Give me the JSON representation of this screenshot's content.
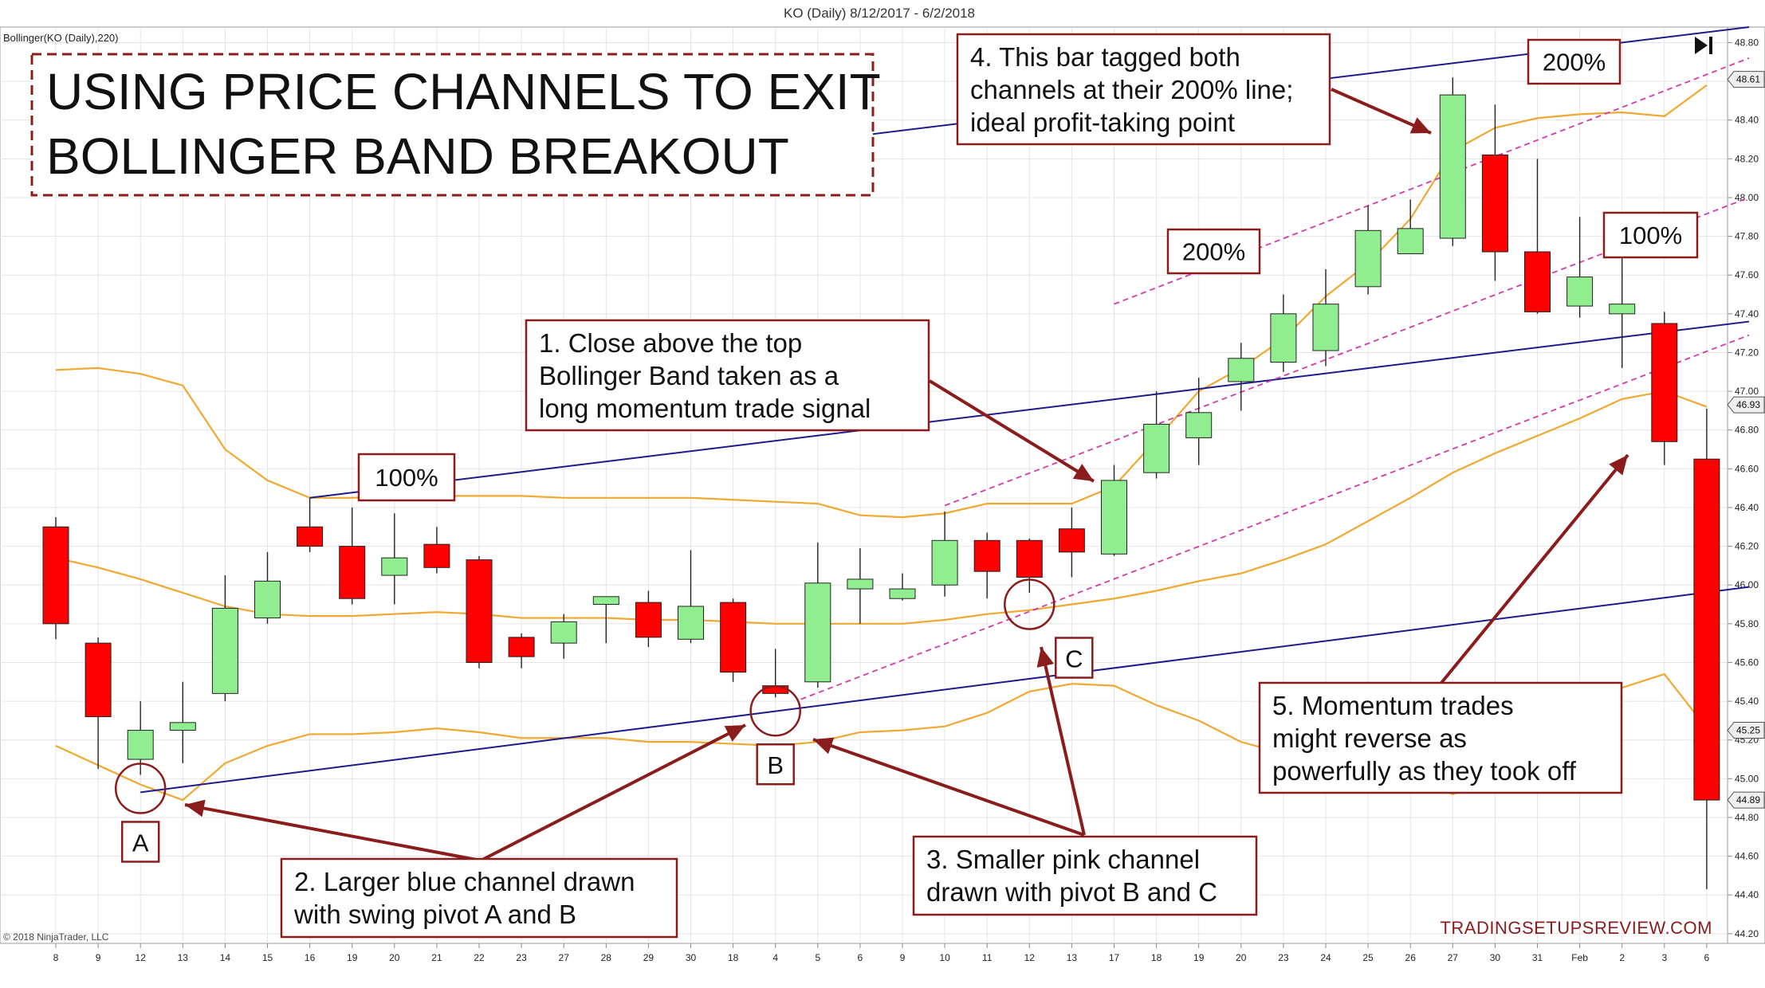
{
  "chart_data": {
    "type": "candlestick",
    "window_title": "KO (Daily)  8/12/2017 - 6/2/2018",
    "indicator_label": "Bollinger(KO (Daily),220)",
    "copyright": "© 2018 NinjaTrader, LLC",
    "watermark": "TRADINGSETUPSREVIEW.COM",
    "title_lines": [
      "USING PRICE CHANNELS TO EXIT",
      "BOLLINGER BAND BREAKOUT"
    ],
    "x_labels": [
      "8",
      "9",
      "12",
      "13",
      "14",
      "15",
      "16",
      "19",
      "20",
      "21",
      "22",
      "23",
      "27",
      "28",
      "29",
      "30",
      "18",
      "4",
      "5",
      "6",
      "9",
      "10",
      "11",
      "12",
      "13",
      "17",
      "18",
      "19",
      "20",
      "23",
      "24",
      "25",
      "26",
      "27",
      "30",
      "31",
      "Feb",
      "2",
      "3",
      "6"
    ],
    "y_ticks": [
      "48.80",
      "48.60",
      "48.40",
      "48.20",
      "48.00",
      "47.80",
      "47.60",
      "47.40",
      "47.20",
      "47.00",
      "46.80",
      "46.60",
      "46.40",
      "46.20",
      "46.00",
      "45.80",
      "45.60",
      "45.40",
      "45.20",
      "45.00",
      "44.80",
      "44.60",
      "44.40",
      "44.20"
    ],
    "ylim": [
      44.15,
      48.88
    ],
    "price_badges": [
      {
        "label": "48.61",
        "value": 48.61
      },
      {
        "label": "46.93",
        "value": 46.93
      },
      {
        "label": "45.25",
        "value": 45.25
      },
      {
        "label": "44.89",
        "value": 44.89
      }
    ],
    "candles": [
      {
        "o": 46.3,
        "h": 46.35,
        "l": 45.72,
        "c": 45.8
      },
      {
        "o": 45.7,
        "h": 45.73,
        "l": 45.05,
        "c": 45.32
      },
      {
        "o": 45.1,
        "h": 45.4,
        "l": 45.02,
        "c": 45.25
      },
      {
        "o": 45.25,
        "h": 45.5,
        "l": 45.08,
        "c": 45.29
      },
      {
        "o": 45.44,
        "h": 46.05,
        "l": 45.4,
        "c": 45.88
      },
      {
        "o": 45.83,
        "h": 46.17,
        "l": 45.8,
        "c": 46.02
      },
      {
        "o": 46.3,
        "h": 46.45,
        "l": 46.17,
        "c": 46.2
      },
      {
        "o": 46.2,
        "h": 46.4,
        "l": 45.9,
        "c": 45.93
      },
      {
        "o": 46.05,
        "h": 46.37,
        "l": 45.9,
        "c": 46.14
      },
      {
        "o": 46.21,
        "h": 46.3,
        "l": 46.06,
        "c": 46.09
      },
      {
        "o": 46.13,
        "h": 46.15,
        "l": 45.57,
        "c": 45.6
      },
      {
        "o": 45.73,
        "h": 45.75,
        "l": 45.57,
        "c": 45.63
      },
      {
        "o": 45.7,
        "h": 45.85,
        "l": 45.62,
        "c": 45.81
      },
      {
        "o": 45.9,
        "h": 45.92,
        "l": 45.7,
        "c": 45.94
      },
      {
        "o": 45.91,
        "h": 45.97,
        "l": 45.68,
        "c": 45.73
      },
      {
        "o": 45.72,
        "h": 46.18,
        "l": 45.7,
        "c": 45.89
      },
      {
        "o": 45.91,
        "h": 45.93,
        "l": 45.5,
        "c": 45.55
      },
      {
        "o": 45.48,
        "h": 45.67,
        "l": 45.42,
        "c": 45.44
      },
      {
        "o": 45.5,
        "h": 46.22,
        "l": 45.47,
        "c": 46.01
      },
      {
        "o": 45.98,
        "h": 46.19,
        "l": 45.8,
        "c": 46.03
      },
      {
        "o": 45.93,
        "h": 46.06,
        "l": 45.92,
        "c": 45.98
      },
      {
        "o": 46.0,
        "h": 46.38,
        "l": 45.94,
        "c": 46.23
      },
      {
        "o": 46.23,
        "h": 46.27,
        "l": 45.93,
        "c": 46.07
      },
      {
        "o": 46.23,
        "h": 46.24,
        "l": 45.96,
        "c": 46.04
      },
      {
        "o": 46.29,
        "h": 46.4,
        "l": 46.04,
        "c": 46.17
      },
      {
        "o": 46.16,
        "h": 46.62,
        "l": 46.15,
        "c": 46.54
      },
      {
        "o": 46.58,
        "h": 47.0,
        "l": 46.55,
        "c": 46.83
      },
      {
        "o": 46.76,
        "h": 47.07,
        "l": 46.62,
        "c": 46.89
      },
      {
        "o": 47.05,
        "h": 47.25,
        "l": 46.9,
        "c": 47.17
      },
      {
        "o": 47.15,
        "h": 47.5,
        "l": 47.1,
        "c": 47.4
      },
      {
        "o": 47.21,
        "h": 47.63,
        "l": 47.13,
        "c": 47.45
      },
      {
        "o": 47.54,
        "h": 47.96,
        "l": 47.5,
        "c": 47.83
      },
      {
        "o": 47.71,
        "h": 47.99,
        "l": 47.71,
        "c": 47.84
      },
      {
        "o": 47.79,
        "h": 48.62,
        "l": 47.75,
        "c": 48.53
      },
      {
        "o": 48.22,
        "h": 48.48,
        "l": 47.57,
        "c": 47.72
      },
      {
        "o": 47.72,
        "h": 48.2,
        "l": 47.4,
        "c": 47.41
      },
      {
        "o": 47.44,
        "h": 47.9,
        "l": 47.38,
        "c": 47.59
      },
      {
        "o": 47.4,
        "h": 47.7,
        "l": 47.12,
        "c": 47.45
      },
      {
        "o": 47.35,
        "h": 47.41,
        "l": 46.62,
        "c": 46.74
      },
      {
        "o": 46.65,
        "h": 46.91,
        "l": 44.43,
        "c": 44.89
      }
    ],
    "bollinger_upper": [
      47.11,
      47.12,
      47.09,
      47.03,
      46.7,
      46.54,
      46.45,
      46.45,
      46.46,
      46.46,
      46.46,
      46.46,
      46.45,
      46.45,
      46.45,
      46.45,
      46.44,
      46.43,
      46.42,
      46.36,
      46.35,
      46.37,
      46.42,
      46.42,
      46.42,
      46.51,
      46.75,
      47.0,
      47.12,
      47.27,
      47.49,
      47.66,
      47.89,
      48.24,
      48.36,
      48.41,
      48.43,
      48.44,
      48.42,
      48.58
    ],
    "bollinger_middle": [
      46.14,
      46.09,
      46.03,
      45.96,
      45.89,
      45.85,
      45.84,
      45.84,
      45.85,
      45.86,
      45.85,
      45.83,
      45.83,
      45.83,
      45.82,
      45.82,
      45.81,
      45.8,
      45.8,
      45.8,
      45.8,
      45.82,
      45.85,
      45.87,
      45.9,
      45.93,
      45.97,
      46.02,
      46.06,
      46.13,
      46.21,
      46.33,
      46.45,
      46.58,
      46.68,
      46.77,
      46.86,
      46.96,
      47.0,
      46.92
    ],
    "bollinger_lower": [
      45.17,
      45.07,
      44.97,
      44.89,
      45.08,
      45.17,
      45.23,
      45.23,
      45.24,
      45.26,
      45.24,
      45.21,
      45.21,
      45.21,
      45.19,
      45.19,
      45.18,
      45.17,
      45.19,
      45.24,
      45.25,
      45.27,
      45.34,
      45.45,
      45.49,
      45.48,
      45.38,
      45.3,
      45.19,
      45.13,
      45.06,
      45.04,
      45.01,
      44.92,
      45.0,
      45.13,
      45.29,
      45.47,
      45.54,
      45.26
    ],
    "channel_lines": [
      {
        "color": "#1b1b8c",
        "dashed": false,
        "from": [
          2,
          44.93
        ],
        "to": [
          40,
          45.99
        ]
      },
      {
        "color": "#1b1b8c",
        "dashed": false,
        "from": [
          6,
          46.45
        ],
        "to": [
          40,
          47.36
        ]
      },
      {
        "color": "#1b1b8c",
        "dashed": false,
        "from": [
          10,
          48.08
        ],
        "to": [
          40,
          48.88
        ]
      },
      {
        "color": "#d63aa8",
        "dashed": true,
        "from": [
          17.6,
          45.41
        ],
        "to": [
          40,
          47.29
        ]
      },
      {
        "color": "#d63aa8",
        "dashed": true,
        "from": [
          21,
          46.41
        ],
        "to": [
          40,
          48.0
        ]
      },
      {
        "color": "#d63aa8",
        "dashed": true,
        "from": [
          25,
          47.45
        ],
        "to": [
          40,
          48.72
        ]
      }
    ],
    "pivots": [
      {
        "label": "A",
        "idx": 2,
        "value": 44.95
      },
      {
        "label": "B",
        "idx": 17,
        "value": 45.35
      },
      {
        "label": "C",
        "idx": 23,
        "value": 45.9
      }
    ],
    "level_labels": [
      "100%",
      "200%",
      "200%",
      "100%"
    ],
    "annotations": [
      "1. Close above the top\nBollinger Band taken as a\nlong momentum trade signal",
      "2. Larger blue channel drawn\nwith swing pivot A and B",
      "3. Smaller pink channel\ndrawn with pivot B and C",
      "4. This bar tagged both\nchannels at their 200% line;\nideal profit-taking point",
      "5. Momentum trades\nmight reverse as\npowerfully as they took off"
    ],
    "colors": {
      "bull": "#90ee90",
      "bear": "#ff0000",
      "band": "#f0a830",
      "blue_channel": "#1b1b8c",
      "pink_channel": "#d63aa8",
      "callout": "#8b1c1c"
    }
  }
}
